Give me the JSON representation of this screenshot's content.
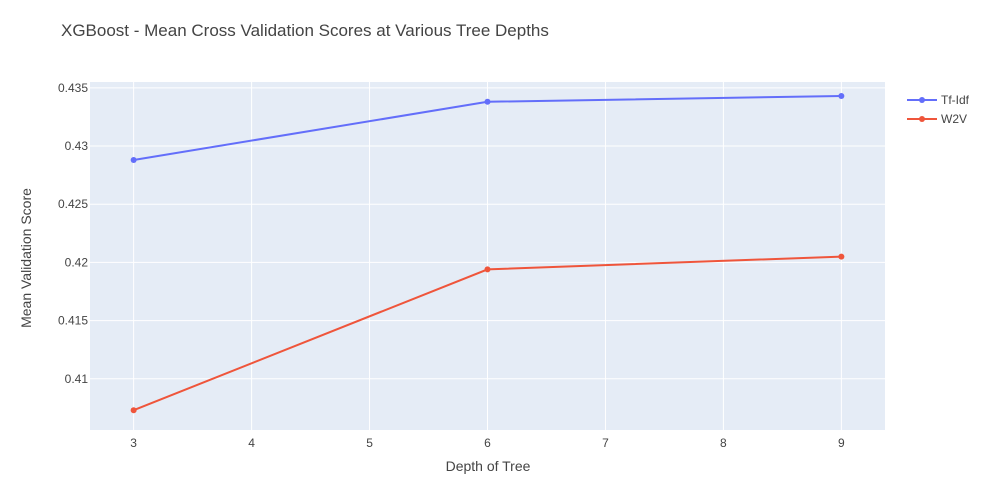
{
  "chart_data": {
    "type": "line",
    "title": "XGBoost - Mean Cross Validation Scores at Various Tree Depths",
    "xlabel": "Depth of Tree",
    "ylabel": "Mean Validation Score",
    "xlim": [
      2.63,
      9.37
    ],
    "ylim": [
      0.4056,
      0.4355
    ],
    "x_ticks": [
      3,
      4,
      5,
      6,
      7,
      8,
      9
    ],
    "y_ticks": [
      0.41,
      0.415,
      0.42,
      0.425,
      0.43,
      0.435
    ],
    "x_tick_labels": [
      "3",
      "4",
      "5",
      "6",
      "7",
      "8",
      "9"
    ],
    "y_tick_labels": [
      "0.41",
      "0.415",
      "0.42",
      "0.425",
      "0.43",
      "0.435"
    ],
    "x": [
      3,
      6,
      9
    ],
    "series": [
      {
        "name": "Tf-Idf",
        "color": "#636efa",
        "values": [
          0.4288,
          0.4338,
          0.4343
        ]
      },
      {
        "name": "W2V",
        "color": "#ef553b",
        "values": [
          0.4073,
          0.4194,
          0.4205
        ]
      }
    ],
    "legend_position": "top-right",
    "grid": true,
    "plot_bgcolor": "#e5ecf6"
  }
}
